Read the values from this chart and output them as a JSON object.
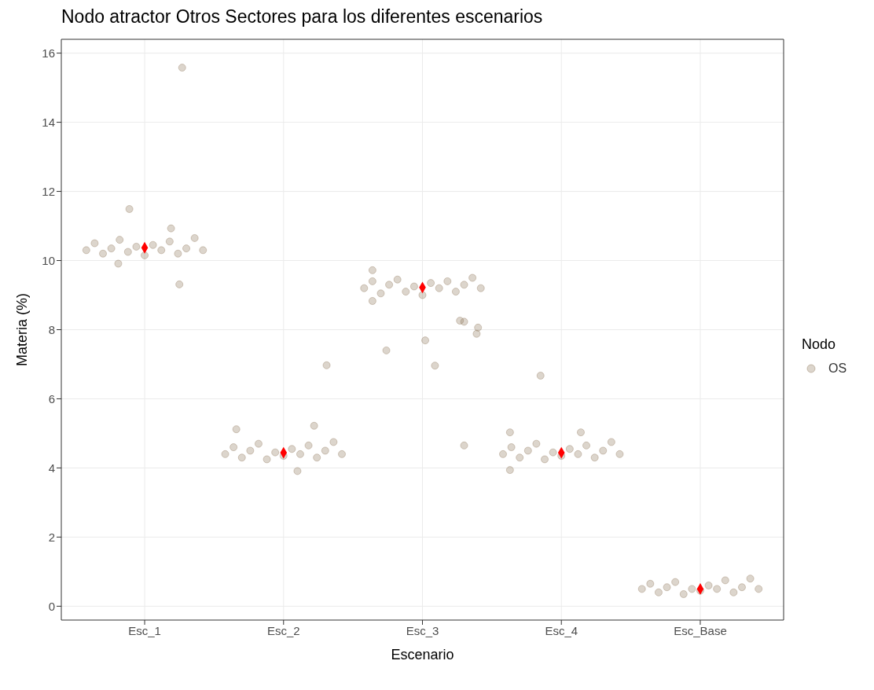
{
  "chart_data": {
    "type": "scatter",
    "title": "Nodo atractor Otros Sectores para los diferentes escenarios",
    "xlabel": "Escenario",
    "ylabel": "Materia (%)",
    "legend_title": "Nodo",
    "legend": "right",
    "grid": true,
    "xlim": [
      0.4,
      5.6
    ],
    "xticks": [
      {
        "value": 1,
        "label": "Esc_1"
      },
      {
        "value": 2,
        "label": "Esc_2"
      },
      {
        "value": 3,
        "label": "Esc_3"
      },
      {
        "value": 4,
        "label": "Esc_4"
      },
      {
        "value": 5,
        "label": "Esc_Base"
      }
    ],
    "ylim": [
      -0.4,
      16.4
    ],
    "yticks": [
      0,
      2,
      4,
      6,
      8,
      10,
      12,
      14,
      16
    ],
    "series": [
      {
        "name": "OS",
        "color": "#8b7355",
        "marker": "circle",
        "x": [
          0.58,
          0.64,
          0.7,
          0.76,
          0.82,
          0.88,
          0.94,
          1.0,
          1.06,
          1.12,
          1.18,
          1.24,
          1.3,
          1.36,
          1.42,
          1.27,
          0.89,
          1.19,
          1.25,
          0.81,
          1.58,
          1.64,
          1.7,
          1.76,
          1.82,
          1.88,
          1.94,
          2.0,
          2.06,
          2.12,
          2.18,
          2.24,
          2.3,
          2.36,
          2.42,
          2.31,
          2.1,
          2.22,
          1.66,
          2.58,
          2.64,
          2.7,
          2.76,
          2.82,
          2.88,
          2.94,
          3.0,
          3.06,
          3.12,
          3.18,
          3.24,
          3.3,
          3.36,
          3.42,
          2.74,
          3.02,
          3.09,
          3.27,
          3.3,
          3.4,
          3.39,
          2.64,
          2.64,
          3.3,
          3.58,
          3.64,
          3.7,
          3.76,
          3.82,
          3.88,
          3.94,
          4.0,
          4.06,
          4.12,
          4.18,
          4.24,
          4.3,
          4.36,
          4.42,
          3.85,
          3.63,
          3.63,
          4.14,
          4.58,
          4.64,
          4.7,
          4.76,
          4.82,
          4.88,
          4.94,
          5.0,
          5.06,
          5.12,
          5.18,
          5.24,
          5.3,
          5.36,
          5.42
        ],
        "values": [
          10.3,
          10.5,
          10.2,
          10.35,
          10.6,
          10.25,
          10.4,
          10.15,
          10.45,
          10.3,
          10.55,
          10.2,
          10.35,
          10.65,
          10.3,
          15.58,
          11.49,
          10.93,
          9.31,
          9.91,
          4.4,
          4.6,
          4.3,
          4.5,
          4.7,
          4.25,
          4.45,
          4.35,
          4.55,
          4.4,
          4.65,
          4.3,
          4.5,
          4.75,
          4.4,
          6.97,
          3.91,
          5.22,
          5.12,
          9.2,
          9.4,
          9.05,
          9.3,
          9.45,
          9.1,
          9.25,
          9.0,
          9.35,
          9.2,
          9.4,
          9.1,
          9.3,
          9.5,
          9.2,
          7.4,
          7.69,
          6.96,
          8.26,
          8.23,
          8.06,
          7.88,
          9.72,
          8.83,
          4.65,
          4.4,
          4.6,
          4.3,
          4.5,
          4.7,
          4.25,
          4.45,
          4.35,
          4.55,
          4.4,
          4.65,
          4.3,
          4.5,
          4.75,
          4.4,
          6.67,
          3.94,
          5.03,
          5.03,
          0.5,
          0.65,
          0.4,
          0.55,
          0.7,
          0.35,
          0.5,
          0.45,
          0.6,
          0.5,
          0.75,
          0.4,
          0.55,
          0.8,
          0.5
        ]
      },
      {
        "color": "#ff0000",
        "marker": "diamond",
        "x": [
          1,
          2,
          3,
          4,
          5
        ],
        "values": [
          10.37,
          4.44,
          9.22,
          4.44,
          0.5
        ]
      }
    ]
  }
}
